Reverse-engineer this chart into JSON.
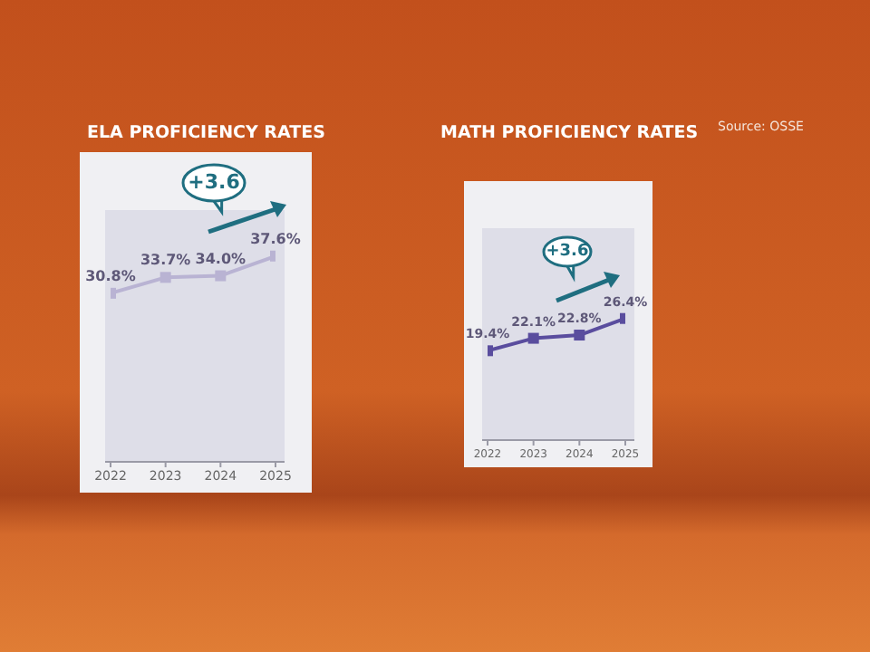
{
  "chart_data": [
    {
      "type": "line",
      "title": "ELA PROFICIENCY RATES",
      "categories": [
        "2022",
        "2023",
        "2024",
        "2025"
      ],
      "series": [
        {
          "color": "#b9b3d3",
          "values": [
            30.8,
            33.7,
            34.0,
            37.6
          ],
          "value_labels": [
            "30.8%",
            "33.7%",
            "34.0%",
            "37.6%"
          ]
        }
      ],
      "ylim": [
        0,
        46
      ],
      "tick_labels": "x",
      "marker": "square",
      "line_style": "solid",
      "annotations": [
        "+3.6"
      ]
    },
    {
      "type": "line",
      "title": "MATH PROFICIENCY RATES",
      "categories": [
        "2022",
        "2023",
        "2024",
        "2025"
      ],
      "series": [
        {
          "color": "#5a4d9e",
          "values": [
            19.4,
            22.1,
            22.8,
            26.4
          ],
          "value_labels": [
            "19.4%",
            "22.1%",
            "22.8%",
            "26.4%"
          ]
        }
      ],
      "ylim": [
        0,
        46
      ],
      "tick_labels": "x",
      "marker": "square",
      "line_style": "solid",
      "annotations": [
        "+3.6",
        "Source: OSSE"
      ]
    }
  ]
}
